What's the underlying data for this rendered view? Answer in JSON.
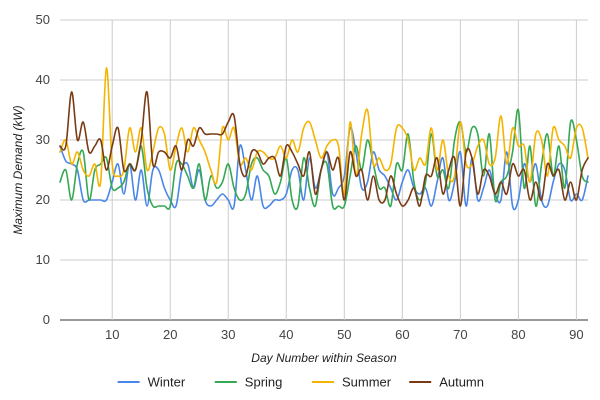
{
  "chart_data": {
    "type": "line",
    "title": "",
    "xlabel": "Day Number within Season",
    "ylabel": "Maximum Demand (kW)",
    "xlim": [
      1,
      92
    ],
    "ylim": [
      0,
      50
    ],
    "xticks": [
      10,
      20,
      30,
      40,
      50,
      60,
      70,
      80,
      90
    ],
    "yticks": [
      0,
      10,
      20,
      30,
      40,
      50
    ],
    "grid": true,
    "legend_position": "bottom",
    "x": [
      1,
      2,
      3,
      4,
      5,
      6,
      7,
      8,
      9,
      10,
      11,
      12,
      13,
      14,
      15,
      16,
      17,
      18,
      19,
      20,
      21,
      22,
      23,
      24,
      25,
      26,
      27,
      28,
      29,
      30,
      31,
      32,
      33,
      34,
      35,
      36,
      37,
      38,
      39,
      40,
      41,
      42,
      43,
      44,
      45,
      46,
      47,
      48,
      49,
      50,
      51,
      52,
      53,
      54,
      55,
      56,
      57,
      58,
      59,
      60,
      61,
      62,
      63,
      64,
      65,
      66,
      67,
      68,
      69,
      70,
      71,
      72,
      73,
      74,
      75,
      76,
      77,
      78,
      79,
      80,
      81,
      82,
      83,
      84,
      85,
      86,
      87,
      88,
      89,
      90,
      91,
      92
    ],
    "series": [
      {
        "name": "Winter",
        "color": "#4a86e8",
        "values": [
          29,
          26.5,
          26,
          25,
          20,
          20,
          20,
          20,
          20,
          23,
          26,
          21,
          26,
          20,
          25,
          19,
          25,
          25,
          22,
          20,
          19,
          25,
          26,
          22,
          25,
          20,
          19,
          20,
          21,
          20,
          19,
          29,
          25,
          20,
          24,
          19,
          19,
          20,
          20,
          21,
          25,
          25,
          20,
          27,
          22,
          25,
          28,
          21,
          22,
          24,
          32,
          28,
          22,
          23,
          28,
          25,
          24,
          22,
          20,
          23,
          25,
          22,
          21,
          22,
          19,
          23,
          27,
          20,
          23,
          28,
          19,
          27,
          20,
          22,
          25,
          21,
          20,
          28,
          19,
          20,
          26,
          23,
          26,
          20,
          19,
          23,
          26,
          25,
          20,
          21,
          20,
          24
        ]
      },
      {
        "name": "Spring",
        "color": "#34a853",
        "values": [
          23,
          25,
          20,
          26,
          28,
          20,
          25,
          26,
          27,
          22,
          22,
          23,
          26,
          25,
          29,
          22,
          19,
          19,
          19,
          19,
          26,
          26,
          24,
          22,
          26,
          20,
          24,
          22,
          23,
          26,
          22,
          20,
          21,
          26,
          27,
          25,
          24,
          21,
          23,
          27,
          20,
          19,
          27,
          22,
          19,
          25,
          26,
          19,
          19,
          19,
          24,
          29,
          25,
          30,
          26,
          22,
          22,
          19,
          26,
          25,
          31,
          23,
          20,
          23,
          31,
          24,
          25,
          22,
          30,
          33,
          28,
          32,
          31,
          24,
          31,
          20,
          23,
          24,
          28,
          35,
          22,
          29,
          19,
          26,
          31,
          24,
          29,
          22,
          33,
          30,
          24,
          23
        ]
      },
      {
        "name": "Summer",
        "color": "#f4b400",
        "values": [
          28,
          30,
          26,
          28,
          25,
          24,
          26,
          23,
          42,
          26,
          24,
          25,
          32,
          28,
          32,
          25,
          28,
          32,
          31,
          25,
          29,
          32,
          28,
          32,
          30,
          28,
          25,
          23,
          32,
          30,
          32,
          26,
          27,
          25,
          28,
          28,
          27,
          27,
          29,
          27,
          30,
          28,
          32,
          33,
          30,
          27,
          29,
          30,
          29,
          21,
          33,
          24,
          31,
          35,
          26,
          27,
          25,
          26,
          32,
          32,
          30,
          25,
          27,
          26,
          32,
          25,
          30,
          24,
          24,
          33,
          26,
          26,
          29,
          30,
          26,
          27,
          34,
          26,
          32,
          29,
          29,
          23,
          31,
          30,
          24,
          32,
          30,
          29,
          27,
          32,
          32,
          27
        ]
      },
      {
        "name": "Autumn",
        "color": "#7a3b14",
        "values": [
          29,
          29,
          38,
          30,
          33,
          28,
          29,
          30,
          25,
          29,
          32,
          25,
          26,
          25,
          30,
          38,
          26,
          28,
          28,
          27,
          29,
          25,
          30,
          29,
          32,
          31,
          31,
          31,
          31,
          33,
          34,
          26,
          24,
          28,
          28,
          26,
          27,
          27,
          24,
          29,
          28,
          26,
          24,
          28,
          21,
          25,
          28,
          25,
          27,
          20,
          28,
          24,
          25,
          20,
          24,
          20,
          20,
          24,
          21,
          19,
          20,
          22,
          19,
          24,
          24,
          27,
          21,
          25,
          27,
          19,
          28,
          27,
          21,
          25,
          24,
          21,
          23,
          21,
          26,
          24,
          25,
          20,
          23,
          20,
          26,
          24,
          25,
          20,
          23,
          20,
          25,
          27
        ]
      }
    ]
  }
}
